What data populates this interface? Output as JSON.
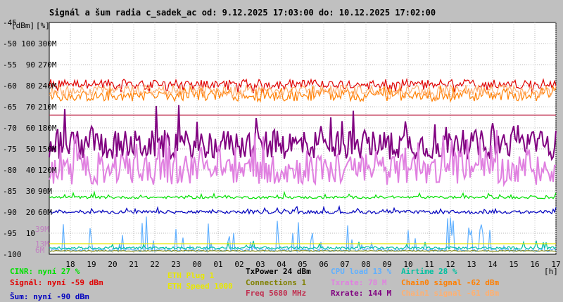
{
  "chart_data": {
    "type": "line",
    "title": "Signál a šum radia c_sadek_ac od: 9.12.2025 17:03:00 do: 10.12.2025 17:02:00",
    "unit_left": "[dBm]",
    "unit_mid": "[%]",
    "x_unit": "[h]",
    "x_ticks": [
      "18",
      "19",
      "20",
      "21",
      "22",
      "23",
      "00",
      "01",
      "02",
      "03",
      "04",
      "05",
      "06",
      "07",
      "08",
      "09",
      "10",
      "11",
      "12",
      "13",
      "14",
      "15",
      "16",
      "17"
    ],
    "y_ticks_dbm": [
      "-45",
      "-50",
      "-55",
      "-60",
      "-65",
      "-70",
      "-75",
      "-80",
      "-85",
      "-90",
      "-95",
      "-100"
    ],
    "y_ticks_pct": [
      "100",
      "90",
      "80",
      "70",
      "60",
      "50",
      "40",
      "30",
      "20",
      "10"
    ],
    "y_ticks_rate": [
      "300M",
      "270M",
      "240M",
      "210M",
      "180M",
      "150M",
      "120M",
      "90M",
      "60M"
    ],
    "y_ticks_small": [
      "39M",
      "13M",
      "6M"
    ],
    "ylim_dbm": [
      -100,
      -45
    ],
    "xlim_hours": [
      17,
      41
    ],
    "series": [
      {
        "name": "Signál",
        "color": "#e00000",
        "level": -59.5,
        "noise": 1.0,
        "spikes": 0.35,
        "spikeAmp": -1.5
      },
      {
        "name": "Chain0 signal",
        "color": "#ff7f00",
        "level": -62.5,
        "noise": 1.2,
        "spikes": 0.4,
        "spikeAmp": 1.5
      },
      {
        "name": "Chain1 signal",
        "color": "#ffb070",
        "level": -61.0,
        "noise": 1.2,
        "spikes": 0.3,
        "spikeAmp": -1.5
      },
      {
        "name": "Freq",
        "color": "#c03050",
        "level": -67.0,
        "noise": 0,
        "spikes": 0,
        "spikeAmp": 0
      },
      {
        "name": "Rxrate",
        "color": "#800080",
        "level": -74.0,
        "noise": 3.5,
        "spikes": 0.15,
        "spikeAmp": 6
      },
      {
        "name": "Txrate",
        "color": "#e080e0",
        "level": -80.0,
        "noise": 3.5,
        "spikes": 0.2,
        "spikeAmp": 6
      },
      {
        "name": "CINR",
        "color": "#00e000",
        "level": -86.5,
        "noise": 0.3,
        "spikes": 0.08,
        "spikeAmp": 1
      },
      {
        "name": "Šum",
        "color": "#0000c0",
        "level": -90.0,
        "noise": 0.4,
        "spikes": 0.15,
        "spikeAmp": 1
      },
      {
        "name": "CPU load",
        "color": "#60b0ff",
        "level": -99.0,
        "noise": 0.4,
        "spikes": 0.12,
        "spikeAmp": 8
      },
      {
        "name": "Airtime",
        "color": "#00c0a0",
        "level": -98.5,
        "noise": 0.3,
        "spikes": 0.05,
        "spikeAmp": 2
      },
      {
        "name": "ETH Speed",
        "color": "#e8e800",
        "level": -97.5,
        "noise": 0,
        "spikes": 0,
        "spikeAmp": 0
      },
      {
        "name": "Connections",
        "color": "#808000",
        "level": -99.2,
        "noise": 0.1,
        "spikes": 0,
        "spikeAmp": 0
      }
    ]
  },
  "legend": [
    {
      "text": "CINR: nyní 27 %",
      "color": "#00e000"
    },
    {
      "text": "Signál: nyní -59 dBm",
      "color": "#e00000"
    },
    {
      "text": "Šum: nyní -90 dBm",
      "color": "#0000c0"
    },
    {
      "text": "ETH Plug 1",
      "color": "#e8e800"
    },
    {
      "text": "ETH Speed 1000",
      "color": "#e8e800"
    },
    {
      "text": "TxPower 24 dBm",
      "color": "#000000"
    },
    {
      "text": "Connections 1",
      "color": "#808000"
    },
    {
      "text": "Freq 5680 MHz",
      "color": "#c03050"
    },
    {
      "text": "CPU load 13 %",
      "color": "#60b0ff"
    },
    {
      "text": "Txrate: 78 M",
      "color": "#e080e0"
    },
    {
      "text": "Rxrate: 144 M",
      "color": "#800080"
    },
    {
      "text": "Airtime 28 %",
      "color": "#00c0a0"
    },
    {
      "text": "Chain0 signal -62 dBm",
      "color": "#ff7f00"
    },
    {
      "text": "Chain1 signal -61 dBm",
      "color": "#ffb070"
    }
  ]
}
